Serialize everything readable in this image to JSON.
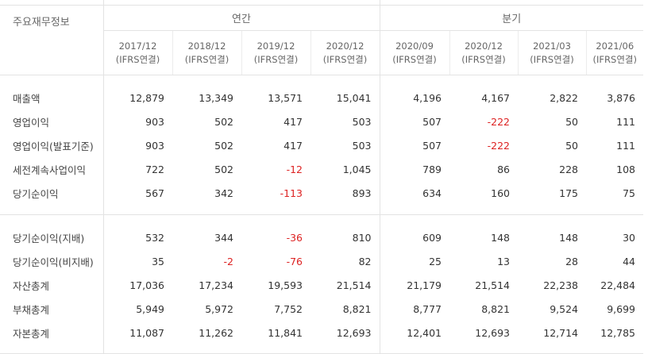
{
  "header": {
    "corner": "주요재무정보",
    "annual": "연간",
    "quarterly": "분기"
  },
  "periods": [
    {
      "date": "2017/12",
      "basis": "(IFRS연결)"
    },
    {
      "date": "2018/12",
      "basis": "(IFRS연결)"
    },
    {
      "date": "2019/12",
      "basis": "(IFRS연결)"
    },
    {
      "date": "2020/12",
      "basis": "(IFRS연결)"
    },
    {
      "date": "2020/09",
      "basis": "(IFRS연결)"
    },
    {
      "date": "2020/12",
      "basis": "(IFRS연결)"
    },
    {
      "date": "2021/03",
      "basis": "(IFRS연결)"
    },
    {
      "date": "2021/06",
      "basis": "(IFRS연결)"
    }
  ],
  "rows_a": [
    {
      "label": "매출액",
      "values": [
        "12,879",
        "13,349",
        "13,571",
        "15,041",
        "4,196",
        "4,167",
        "2,822",
        "3,876"
      ]
    },
    {
      "label": "영업이익",
      "values": [
        "903",
        "502",
        "417",
        "503",
        "507",
        "-222",
        "50",
        "111"
      ]
    },
    {
      "label": "영업이익(발표기준)",
      "values": [
        "903",
        "502",
        "417",
        "503",
        "507",
        "-222",
        "50",
        "111"
      ]
    },
    {
      "label": "세전계속사업이익",
      "values": [
        "722",
        "502",
        "-12",
        "1,045",
        "789",
        "86",
        "228",
        "108"
      ]
    },
    {
      "label": "당기순이익",
      "values": [
        "567",
        "342",
        "-113",
        "893",
        "634",
        "160",
        "175",
        "75"
      ]
    }
  ],
  "rows_b": [
    {
      "label": "당기순이익(지배)",
      "values": [
        "532",
        "344",
        "-36",
        "810",
        "609",
        "148",
        "148",
        "30"
      ]
    },
    {
      "label": "당기순이익(비지배)",
      "values": [
        "35",
        "-2",
        "-76",
        "82",
        "25",
        "13",
        "28",
        "44"
      ]
    },
    {
      "label": "자산총계",
      "values": [
        "17,036",
        "17,234",
        "19,593",
        "21,514",
        "21,179",
        "21,514",
        "22,238",
        "22,484"
      ]
    },
    {
      "label": "부채총계",
      "values": [
        "5,949",
        "5,972",
        "7,752",
        "8,821",
        "8,777",
        "8,821",
        "9,524",
        "9,699"
      ]
    },
    {
      "label": "자본총계",
      "values": [
        "11,087",
        "11,262",
        "11,841",
        "12,693",
        "12,401",
        "12,693",
        "12,714",
        "12,785"
      ]
    }
  ],
  "colors": {
    "negative": "#dd2222",
    "border": "#e3e3e3",
    "text": "#333333"
  }
}
